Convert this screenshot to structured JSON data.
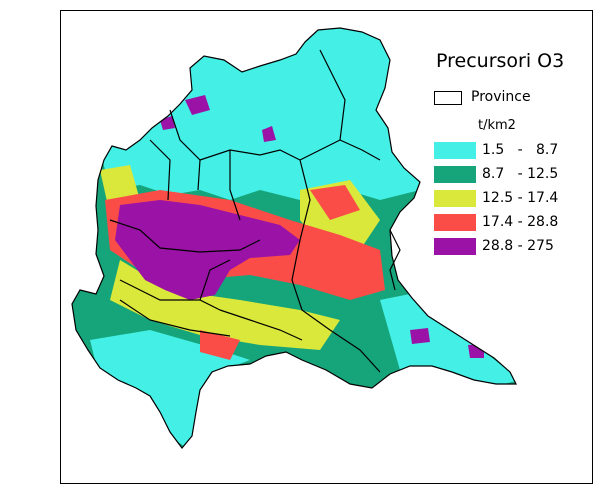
{
  "legend": {
    "title": "Precursori O3",
    "province_label": "Province",
    "unit": "t/km2",
    "classes": [
      {
        "label": "1.5   -   8.7",
        "color": "#44f0e6"
      },
      {
        "label": "8.7   - 12.5",
        "color": "#16a47a"
      },
      {
        "label": "12.5 - 17.4",
        "color": "#d9e83a"
      },
      {
        "label": "17.4 - 28.8",
        "color": "#fb4d47"
      },
      {
        "label": "28.8 - 275",
        "color": "#9a12a6"
      }
    ]
  },
  "colors": {
    "province_border": "#000000",
    "frame": "#000000",
    "background": "#ffffff"
  }
}
